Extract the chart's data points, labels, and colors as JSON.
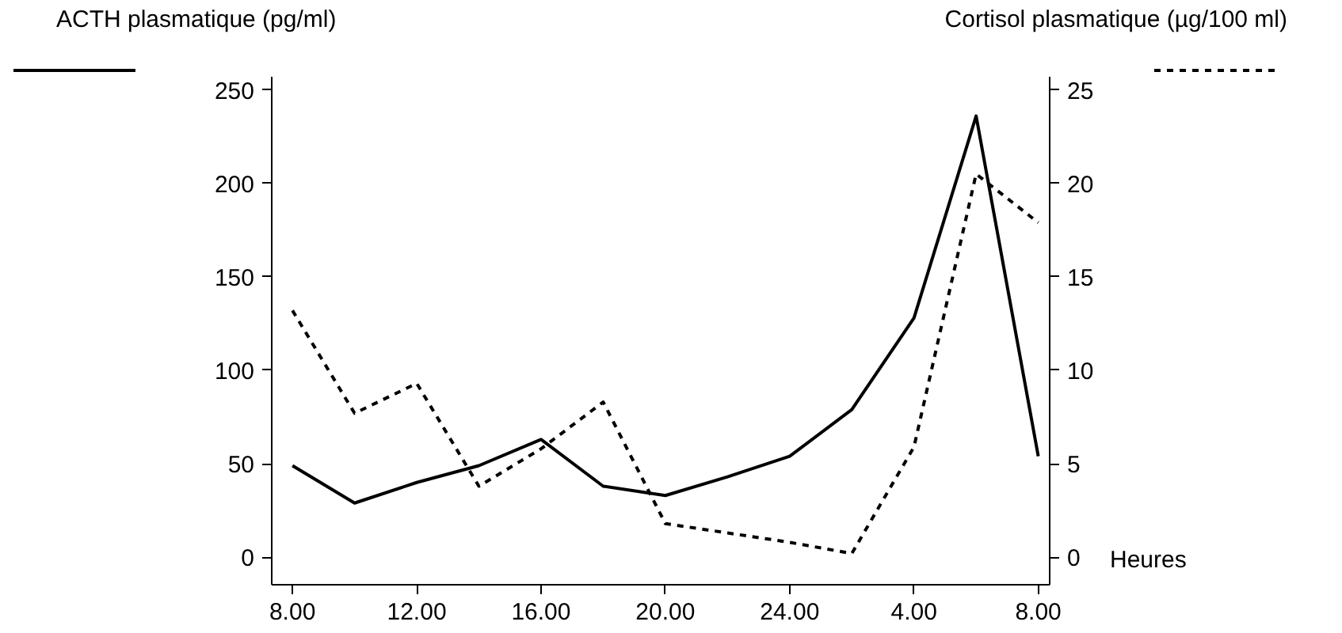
{
  "chart_data": {
    "type": "line",
    "ylabel": "ACTH plasmatique (pg/ml)",
    "y2label": "Cortisol plasmatique (µg/100 ml)",
    "xlabel": "Heures",
    "x": [
      "2000-01-01T08:00",
      "2000-01-01T10:00",
      "2000-01-01T12:00",
      "2000-01-01T14:00",
      "2000-01-01T16:00",
      "2000-01-01T18:00",
      "2000-01-01T20:00",
      "2000-01-01T22:00",
      "2000-01-02T00:00",
      "2000-01-02T02:00",
      "2000-01-02T04:00",
      "2000-01-02T06:00",
      "2000-01-02T08:00"
    ],
    "series": [
      {
        "color": "#000000",
        "line_style": "solid",
        "values": [
          49,
          29,
          40,
          49,
          63,
          38,
          33,
          43,
          54,
          79,
          128,
          236,
          54
        ]
      },
      {
        "color": "#000000",
        "line_style": "dotted",
        "axis": "y2",
        "values": [
          13.2,
          7.7,
          9.3,
          3.8,
          5.8,
          8.3,
          1.8,
          1.3,
          0.8,
          0.2,
          5.9,
          20.5,
          17.9
        ]
      }
    ],
    "xlim": [
      "2000-01-01T07:20",
      "2000-01-02T08:22"
    ],
    "xticks": [
      {
        "value": "2000-01-01T08:00",
        "label": "8.00"
      },
      {
        "value": "2000-01-01T12:00",
        "label": "12.00"
      },
      {
        "value": "2000-01-01T16:00",
        "label": "16.00"
      },
      {
        "value": "2000-01-01T20:00",
        "label": "20.00"
      },
      {
        "value": "2000-01-02T00:00",
        "label": "24.00"
      },
      {
        "value": "2000-01-02T04:00",
        "label": "4.00"
      },
      {
        "value": "2000-01-02T08:00",
        "label": "8.00"
      }
    ],
    "ylim": [
      -14.7,
      257
    ],
    "yticks": [
      0,
      50,
      100,
      150,
      200,
      250
    ],
    "y2lim": [
      -1.47,
      25.7
    ],
    "y2ticks": [
      0,
      5,
      10,
      15,
      20,
      25
    ],
    "grid": false,
    "marker": "none"
  }
}
